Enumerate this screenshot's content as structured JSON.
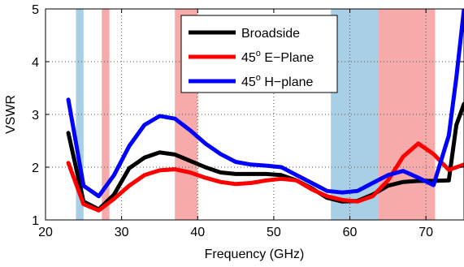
{
  "chart_data": {
    "type": "line",
    "title": "",
    "xlabel": "Frequency (GHz)",
    "ylabel": "VSWR",
    "xlim": [
      20,
      75
    ],
    "ylim": [
      1,
      5
    ],
    "xticks": [
      20,
      30,
      40,
      50,
      60,
      70
    ],
    "yticks": [
      1,
      2,
      3,
      4,
      5
    ],
    "grid": "dotted",
    "legend_position": "top-center",
    "bands": [
      {
        "x0": 24,
        "x1": 25,
        "color": "#a9cfe6"
      },
      {
        "x0": 27.4,
        "x1": 28.4,
        "color": "#f7aaaa"
      },
      {
        "x0": 37,
        "x1": 40,
        "color": "#f7aaaa"
      },
      {
        "x0": 57.5,
        "x1": 63.7,
        "color": "#a9cfe6"
      },
      {
        "x0": 63.7,
        "x1": 71.2,
        "color": "#f7aaaa"
      }
    ],
    "series": [
      {
        "name": "Broadside",
        "color": "#000000",
        "x": [
          23,
          25,
          27,
          29,
          31,
          33,
          35,
          37,
          39,
          41,
          43,
          45,
          47,
          49,
          51,
          53,
          55,
          57,
          59,
          61,
          63,
          65,
          67,
          69,
          71,
          73,
          74,
          75
        ],
        "y": [
          2.65,
          1.35,
          1.2,
          1.48,
          1.98,
          2.18,
          2.28,
          2.24,
          2.12,
          2.0,
          1.9,
          1.87,
          1.87,
          1.87,
          1.85,
          1.75,
          1.6,
          1.42,
          1.35,
          1.36,
          1.48,
          1.65,
          1.72,
          1.74,
          1.74,
          1.75,
          2.8,
          3.2
        ]
      },
      {
        "name": "45° E-Plane",
        "color": "#ff0000",
        "x": [
          23,
          25,
          27,
          29,
          31,
          33,
          35,
          37,
          39,
          41,
          43,
          45,
          47,
          49,
          51,
          53,
          55,
          57,
          59,
          61,
          63,
          65,
          67,
          69,
          71,
          73,
          75
        ],
        "y": [
          2.08,
          1.3,
          1.18,
          1.4,
          1.65,
          1.85,
          1.94,
          1.96,
          1.9,
          1.8,
          1.72,
          1.68,
          1.7,
          1.75,
          1.78,
          1.75,
          1.58,
          1.45,
          1.38,
          1.35,
          1.45,
          1.75,
          2.2,
          2.45,
          2.25,
          1.95,
          2.05
        ]
      },
      {
        "name": "45° H-plane",
        "color": "#0000ff",
        "x": [
          23,
          25,
          27,
          29,
          31,
          33,
          35,
          37,
          39,
          41,
          43,
          45,
          47,
          49,
          51,
          53,
          55,
          57,
          59,
          61,
          63,
          65,
          67,
          69,
          71,
          73,
          74,
          75
        ],
        "y": [
          3.28,
          1.65,
          1.45,
          1.85,
          2.4,
          2.8,
          2.97,
          2.92,
          2.7,
          2.45,
          2.25,
          2.1,
          2.05,
          2.03,
          2.0,
          1.85,
          1.7,
          1.55,
          1.52,
          1.55,
          1.7,
          1.85,
          1.93,
          1.8,
          1.66,
          2.6,
          3.7,
          5.0
        ]
      }
    ]
  },
  "legend": {
    "items": [
      {
        "prefix": "Broadside",
        "sup": "",
        "suffix": ""
      },
      {
        "prefix": "45",
        "sup": "o",
        "suffix": " E−Plane"
      },
      {
        "prefix": "45",
        "sup": "o",
        "suffix": " H−plane"
      }
    ]
  }
}
